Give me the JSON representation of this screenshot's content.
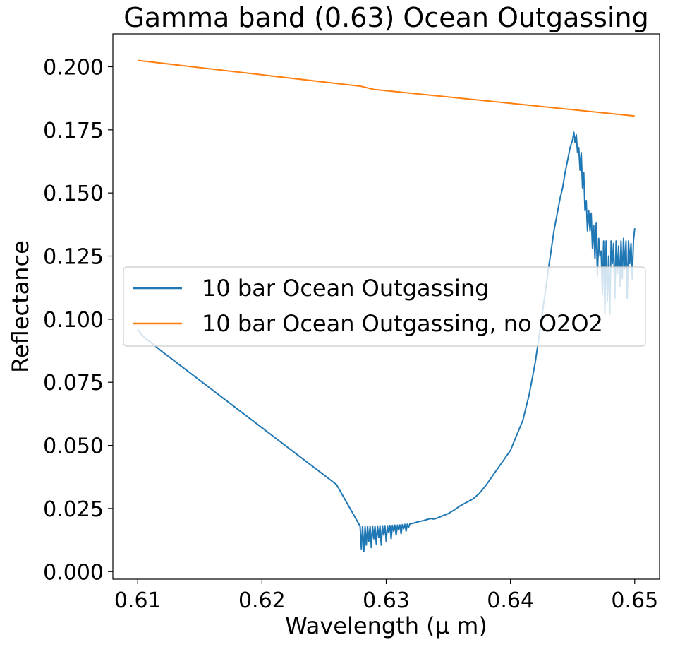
{
  "chart_data": {
    "type": "line",
    "title": "Gamma band (0.63) Ocean Outgassing",
    "xlabel": "Wavelength (μ m)",
    "ylabel": "Reflectance",
    "xlim": [
      0.608,
      0.652
    ],
    "ylim": [
      -0.003,
      0.213
    ],
    "xticks": [
      0.61,
      0.62,
      0.63,
      0.64,
      0.65
    ],
    "xtick_labels": [
      "0.61",
      "0.62",
      "0.63",
      "0.64",
      "0.65"
    ],
    "yticks": [
      0.0,
      0.025,
      0.05,
      0.075,
      0.1,
      0.125,
      0.15,
      0.175,
      0.2
    ],
    "ytick_labels": [
      "0.000",
      "0.025",
      "0.050",
      "0.075",
      "0.100",
      "0.125",
      "0.150",
      "0.175",
      "0.200"
    ],
    "grid": false,
    "legend_position": "center-left",
    "series": [
      {
        "name": "10 bar Ocean Outgassing",
        "color": "#1f77b4",
        "x": [
          0.61,
          0.6103,
          0.6107,
          0.611,
          0.612,
          0.614,
          0.616,
          0.618,
          0.62,
          0.622,
          0.624,
          0.626,
          0.6279,
          0.628,
          0.6281,
          0.6282,
          0.6283,
          0.6284,
          0.6285,
          0.6286,
          0.6287,
          0.6288,
          0.6289,
          0.629,
          0.6291,
          0.6292,
          0.6293,
          0.6294,
          0.6295,
          0.6296,
          0.6297,
          0.6298,
          0.6299,
          0.63,
          0.6301,
          0.6302,
          0.6303,
          0.6304,
          0.6305,
          0.6306,
          0.6307,
          0.6308,
          0.6309,
          0.631,
          0.6311,
          0.6312,
          0.6313,
          0.6314,
          0.6315,
          0.6316,
          0.6317,
          0.6318,
          0.6319,
          0.632,
          0.6322,
          0.6324,
          0.6326,
          0.6328,
          0.633,
          0.6332,
          0.6334,
          0.6336,
          0.6338,
          0.634,
          0.6345,
          0.635,
          0.6355,
          0.636,
          0.6365,
          0.637,
          0.6375,
          0.638,
          0.639,
          0.64,
          0.641,
          0.6415,
          0.642,
          0.6425,
          0.643,
          0.6435,
          0.644,
          0.6442,
          0.6444,
          0.6446,
          0.6448,
          0.645,
          0.6451,
          0.6452,
          0.6453,
          0.6454,
          0.6455,
          0.6456,
          0.6457,
          0.6458,
          0.6459,
          0.646,
          0.6461,
          0.6462,
          0.6463,
          0.6464,
          0.6465,
          0.6466,
          0.6467,
          0.6468,
          0.6469,
          0.647,
          0.6471,
          0.6472,
          0.6473,
          0.6474,
          0.6475,
          0.6476,
          0.6477,
          0.6478,
          0.6479,
          0.648,
          0.6481,
          0.6482,
          0.6483,
          0.6484,
          0.6485,
          0.6486,
          0.6487,
          0.6488,
          0.6489,
          0.649,
          0.6491,
          0.6492,
          0.6493,
          0.6494,
          0.6495,
          0.6496,
          0.6497,
          0.6498,
          0.6499,
          0.65
        ],
        "y": [
          0.096,
          0.094,
          0.092,
          0.091,
          0.087,
          0.0795,
          0.072,
          0.0645,
          0.057,
          0.0495,
          0.042,
          0.0345,
          0.018,
          0.009,
          0.018,
          0.008,
          0.0178,
          0.0105,
          0.0179,
          0.012,
          0.018,
          0.0095,
          0.0181,
          0.013,
          0.0181,
          0.011,
          0.0181,
          0.0135,
          0.0182,
          0.0105,
          0.0182,
          0.0145,
          0.0182,
          0.012,
          0.0182,
          0.0155,
          0.0183,
          0.013,
          0.0183,
          0.016,
          0.0184,
          0.0145,
          0.0184,
          0.0165,
          0.0185,
          0.015,
          0.0186,
          0.017,
          0.0187,
          0.016,
          0.0188,
          0.0175,
          0.0189,
          0.019,
          0.0192,
          0.0195,
          0.0198,
          0.02,
          0.0202,
          0.0205,
          0.0208,
          0.021,
          0.0208,
          0.021,
          0.022,
          0.023,
          0.0245,
          0.0262,
          0.0275,
          0.0288,
          0.031,
          0.034,
          0.041,
          0.048,
          0.06,
          0.07,
          0.083,
          0.1,
          0.118,
          0.135,
          0.148,
          0.152,
          0.158,
          0.163,
          0.168,
          0.171,
          0.174,
          0.17,
          0.173,
          0.166,
          0.168,
          0.159,
          0.166,
          0.152,
          0.158,
          0.143,
          0.147,
          0.135,
          0.143,
          0.135,
          0.142,
          0.128,
          0.137,
          0.124,
          0.138,
          0.117,
          0.132,
          0.125,
          0.127,
          0.11,
          0.131,
          0.102,
          0.131,
          0.107,
          0.125,
          0.102,
          0.131,
          0.122,
          0.13,
          0.108,
          0.131,
          0.118,
          0.129,
          0.113,
          0.131,
          0.116,
          0.132,
          0.12,
          0.131,
          0.108,
          0.131,
          0.122,
          0.13,
          0.116,
          0.131,
          0.136
        ]
      },
      {
        "name": "10 bar Ocean Outgassing, no O2O2",
        "color": "#ff7f0e",
        "x": [
          0.61,
          0.628,
          0.629,
          0.65
        ],
        "y": [
          0.2025,
          0.1922,
          0.191,
          0.1805
        ]
      }
    ]
  }
}
